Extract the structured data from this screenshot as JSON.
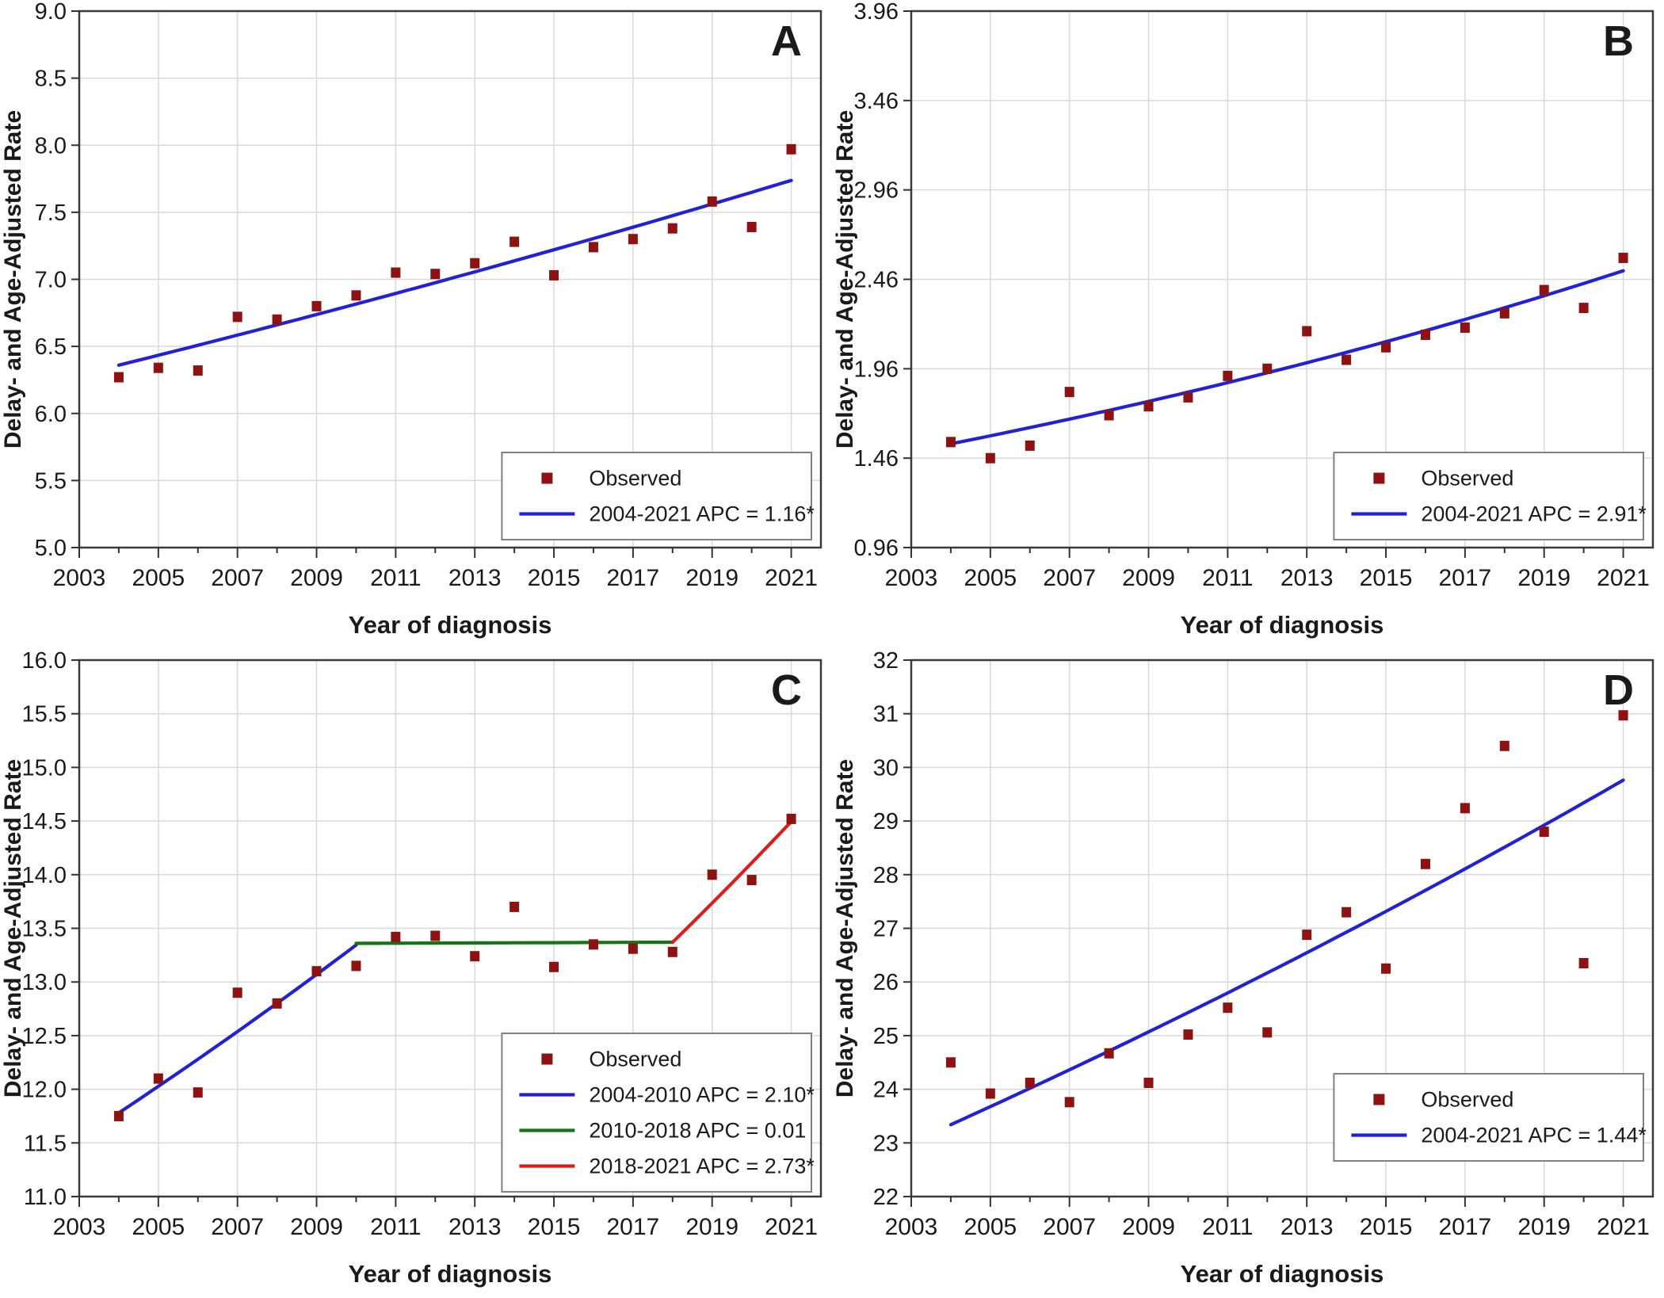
{
  "chart_data": {
    "type": "scatter",
    "shared": {
      "xlabel": "Year of diagnosis",
      "ylabel": "Delay- and Age-Adjusted Rate",
      "observed_label": "Observed",
      "x_years": [
        2004,
        2005,
        2006,
        2007,
        2008,
        2009,
        2010,
        2011,
        2012,
        2013,
        2014,
        2015,
        2016,
        2017,
        2018,
        2019,
        2020,
        2021
      ],
      "xticks": [
        2003,
        2005,
        2007,
        2009,
        2011,
        2013,
        2015,
        2017,
        2019,
        2021
      ],
      "xlim": [
        2003,
        2021.75
      ],
      "legend_position": "bottom-right",
      "grid": true,
      "marker_color": "#8e1212",
      "axis_color": "#333333",
      "grid_color": "#d9d9d9"
    },
    "panels": [
      {
        "letter": "A",
        "ylim": [
          5.0,
          9.0
        ],
        "ytick_step": 0.5,
        "ytick_decimals": 1,
        "observed": [
          6.27,
          6.34,
          6.32,
          6.72,
          6.7,
          6.8,
          6.88,
          7.05,
          7.04,
          7.12,
          7.28,
          7.03,
          7.24,
          7.3,
          7.38,
          7.58,
          7.39,
          7.97
        ],
        "trends": [
          {
            "label": "2004-2021 APC  = 1.16*",
            "color": "#2222d4",
            "from_year": 2004,
            "to_year": 2021,
            "start_value": 6.36,
            "apc_percent": 1.16
          }
        ],
        "legend_raise": 10
      },
      {
        "letter": "B",
        "ylim": [
          0.96,
          3.96
        ],
        "ytick_step": 0.5,
        "ytick_decimals": 2,
        "observed": [
          1.55,
          1.46,
          1.53,
          1.83,
          1.7,
          1.75,
          1.8,
          1.92,
          1.96,
          2.17,
          2.01,
          2.08,
          2.15,
          2.19,
          2.27,
          2.4,
          2.3,
          2.58
        ],
        "trends": [
          {
            "label": "2004-2021 APC  = 2.91*",
            "color": "#2222d4",
            "from_year": 2004,
            "to_year": 2021,
            "start_value": 1.54,
            "apc_percent": 2.91
          }
        ],
        "legend_raise": 10
      },
      {
        "letter": "C",
        "ylim": [
          11.0,
          16.0
        ],
        "ytick_step": 0.5,
        "ytick_decimals": 1,
        "observed": [
          11.75,
          12.1,
          11.97,
          12.9,
          12.8,
          13.1,
          13.15,
          13.42,
          13.43,
          13.24,
          13.7,
          13.14,
          13.35,
          13.31,
          13.28,
          14.0,
          13.95,
          14.52
        ],
        "trends": [
          {
            "label": "2004-2010 APC  = 2.10*",
            "color": "#2222d4",
            "from_year": 2004,
            "to_year": 2010,
            "start_value": 11.78,
            "apc_percent": 2.1
          },
          {
            "label": "2010-2018 APC  = 0.01",
            "color": "#177317",
            "from_year": 2010,
            "to_year": 2018,
            "start_value": 13.36,
            "apc_percent": 0.01
          },
          {
            "label": "2018-2021 APC  = 2.73*",
            "color": "#dd1c1c",
            "from_year": 2018,
            "to_year": 2021,
            "start_value": 13.37,
            "apc_percent": 2.73
          }
        ],
        "legend_raise": 6
      },
      {
        "letter": "D",
        "ylim": [
          22,
          32
        ],
        "ytick_step": 1,
        "ytick_decimals": 0,
        "observed": [
          24.5,
          23.92,
          24.12,
          23.76,
          24.67,
          24.12,
          25.02,
          25.52,
          25.06,
          26.88,
          27.3,
          26.25,
          28.2,
          29.24,
          30.4,
          28.8,
          26.35,
          30.97
        ],
        "trends": [
          {
            "label": "2004-2021 APC  = 1.44*",
            "color": "#2222d4",
            "from_year": 2004,
            "to_year": 2021,
            "start_value": 23.34,
            "apc_percent": 1.44
          }
        ],
        "legend_raise": 45
      }
    ]
  }
}
